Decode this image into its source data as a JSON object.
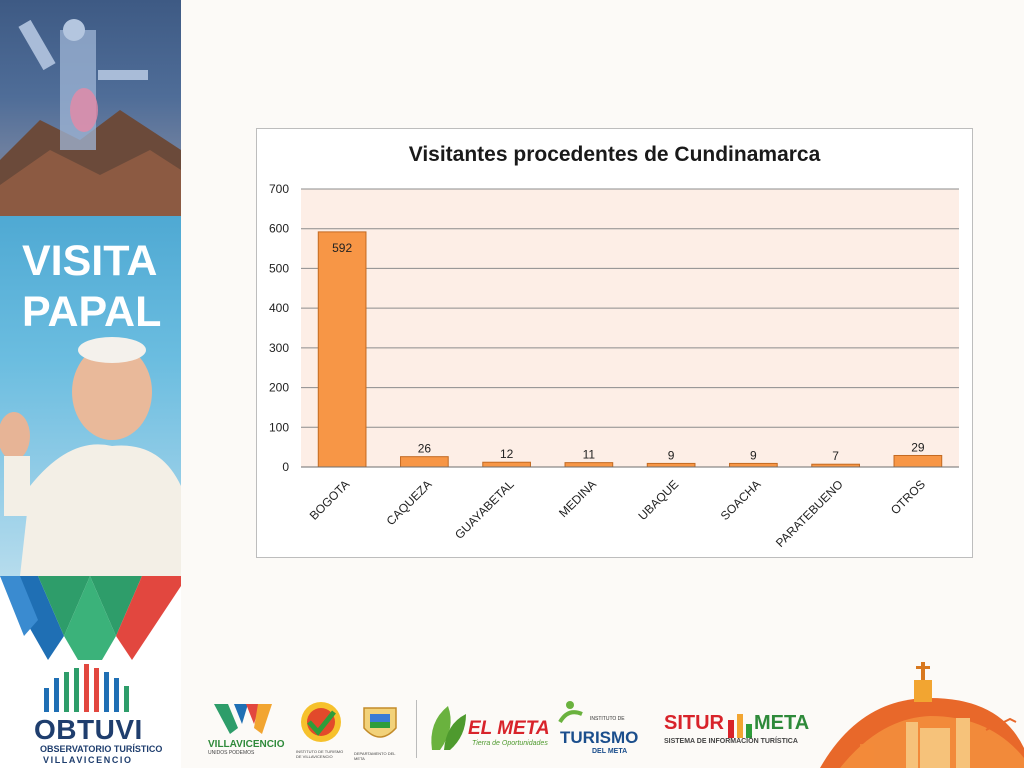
{
  "sidebar": {
    "banner_title_line1": "VISITA",
    "banner_title_line2": "PAPAL",
    "org_name": "OBTUVI",
    "org_sub_line1": "OBSERVATORIO TURÍSTICO",
    "org_sub_line2": "VILLAVICENCIO"
  },
  "footer": {
    "villavicencio_text": "VILLAVICENCIO",
    "villavicencio_sub": "UNIDOS PODEMOS",
    "instituto_sub": "INSTITUTO DE TURISMO DE VILLAVICENCIO",
    "departamento_sub": "DEPARTAMENTO DEL META",
    "elmeta_text": "EL META",
    "elmeta_sub": "Tierra de Oportunidades",
    "turismo_pre": "INSTITUTO DE",
    "turismo_text": "TURISMO",
    "turismo_sub": "DEL META",
    "situr_text_a": "SITUR",
    "situr_text_b": "META",
    "situr_sub": "SISTEMA DE INFORMACIÓN TURÍSTICA"
  },
  "colors": {
    "bar": "#f79646",
    "bar_border": "#c36a22",
    "plot_bg": "#fdeee6",
    "grid": "#8c8c8c"
  },
  "chart_data": {
    "type": "bar",
    "title": "Visitantes procedentes de Cundinamarca",
    "categories": [
      "BOGOTA",
      "CAQUEZA",
      "GUAYABETAL",
      "MEDINA",
      "UBAQUE",
      "SOACHA",
      "PARATEBUENO",
      "OTROS"
    ],
    "values": [
      592,
      26,
      12,
      11,
      9,
      9,
      7,
      29
    ],
    "data_labels": [
      "592",
      "26",
      "12",
      "11",
      "9",
      "9",
      "7",
      "29"
    ],
    "yticks": [
      "0",
      "100",
      "200",
      "300",
      "400",
      "500",
      "600",
      "700"
    ],
    "ylim": [
      0,
      700
    ],
    "xlabel": "",
    "ylabel": "",
    "grid": true,
    "legend": "none"
  }
}
